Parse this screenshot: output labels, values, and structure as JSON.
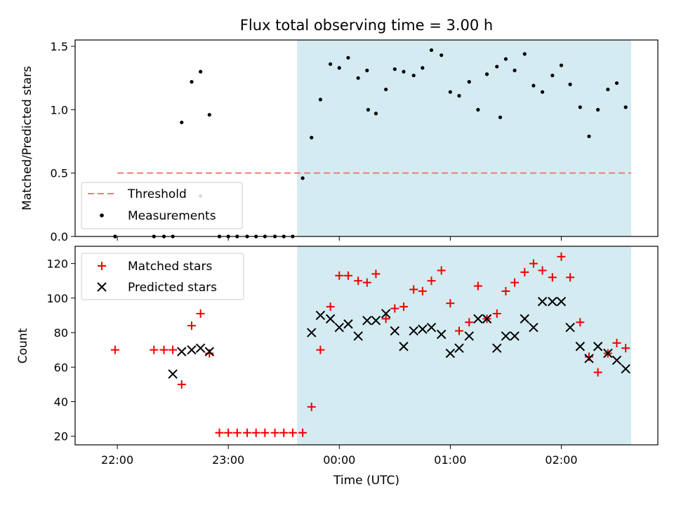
{
  "chart_data": [
    {
      "type": "scatter",
      "title": "Flux total observing time = 3.00 h",
      "xlabel": "",
      "ylabel": "Matched/Predicted stars",
      "ylim": [
        0,
        1.55
      ],
      "yticks": [
        "0.0",
        "0.5",
        "1.0",
        "1.5"
      ],
      "xlim_hours": [
        21.62,
        26.87
      ],
      "shaded_interval_hours": [
        23.62,
        26.63
      ],
      "shade_color": "#d4ebf1",
      "threshold": {
        "name": "Threshold",
        "y": 0.5,
        "x_range_hours": [
          22.0,
          26.63
        ],
        "color": "#f27a7a"
      },
      "legend": {
        "position": "lower-left",
        "entries": [
          "Threshold",
          "Measurements"
        ]
      },
      "series": [
        {
          "name": "Measurements",
          "color": "#000000",
          "x_hours": [
            21.98,
            22.33,
            22.42,
            22.5,
            22.58,
            22.67,
            22.75,
            22.83,
            22.92,
            23.0,
            23.08,
            23.17,
            23.25,
            23.33,
            23.42,
            23.5,
            23.58,
            23.67,
            23.75,
            23.83,
            23.92,
            24.0,
            24.08,
            24.17,
            24.25,
            24.33,
            24.42,
            24.5,
            24.58,
            24.67,
            24.75,
            24.83,
            24.92,
            25.0,
            25.08,
            25.17,
            25.25,
            25.33,
            25.42,
            25.5,
            25.58,
            25.67,
            25.75,
            25.83,
            25.92,
            26.0,
            26.08,
            26.17,
            26.25,
            26.33,
            26.42,
            26.5,
            26.58
          ],
          "y": [
            0.0,
            0.0,
            0.0,
            0.0,
            0.9,
            1.22,
            1.3,
            0.96,
            0.0,
            0.0,
            0.0,
            0.0,
            0.0,
            0.0,
            0.0,
            0.0,
            0.0,
            0.46,
            0.78,
            1.08,
            1.36,
            1.33,
            1.41,
            1.25,
            1.31,
            0.97,
            1.16,
            1.32,
            1.3,
            1.27,
            1.33,
            1.47,
            1.43,
            1.14,
            1.11,
            1.22,
            1.0,
            1.28,
            1.34,
            1.4,
            1.31,
            1.44,
            1.19,
            1.14,
            1.27,
            1.35,
            1.2,
            1.02,
            0.79,
            1.0,
            1.16,
            1.21,
            1.02
          ]
        }
      ],
      "extra_points": [
        {
          "x_hours": 22.75,
          "y": 0.32
        },
        {
          "x_hours": 24.26,
          "y": 1.0
        },
        {
          "x_hours": 25.45,
          "y": 0.94
        }
      ]
    },
    {
      "type": "scatter",
      "title": "",
      "xlabel": "Time (UTC)",
      "ylabel": "Count",
      "ylim": [
        15,
        130
      ],
      "yticks": [
        "20",
        "40",
        "60",
        "80",
        "100",
        "120"
      ],
      "xticks": [
        "22:00",
        "23:00",
        "00:00",
        "01:00",
        "02:00"
      ],
      "xtick_hours": [
        22,
        23,
        24,
        25,
        26
      ],
      "legend": {
        "position": "top-left",
        "entries": [
          "Matched stars",
          "Predicted stars"
        ]
      },
      "series": [
        {
          "name": "Matched stars",
          "marker": "plus",
          "color": "#ee0000",
          "x_hours": [
            21.98,
            22.33,
            22.42,
            22.5,
            22.58,
            22.67,
            22.75,
            22.83,
            22.92,
            23.0,
            23.08,
            23.17,
            23.25,
            23.33,
            23.42,
            23.5,
            23.58,
            23.67,
            23.75,
            23.83,
            23.92,
            24.0,
            24.08,
            24.17,
            24.25,
            24.33,
            24.42,
            24.5,
            24.58,
            24.67,
            24.75,
            24.83,
            24.92,
            25.0,
            25.08,
            25.17,
            25.25,
            25.33,
            25.42,
            25.5,
            25.58,
            25.67,
            25.75,
            25.83,
            25.92,
            26.0,
            26.08,
            26.17,
            26.25,
            26.33,
            26.42,
            26.5,
            26.58
          ],
          "y": [
            70,
            70,
            70,
            70,
            50,
            84,
            91,
            68,
            22,
            22,
            22,
            22,
            22,
            22,
            22,
            22,
            22,
            22,
            37,
            70,
            95,
            113,
            113,
            110,
            109,
            114,
            88,
            94,
            95,
            105,
            104,
            110,
            116,
            97,
            81,
            86,
            107,
            88,
            91,
            104,
            109,
            115,
            120,
            116,
            112,
            124,
            112,
            86,
            66,
            57,
            68,
            74,
            71
          ]
        },
        {
          "name": "Predicted stars",
          "marker": "x",
          "color": "#000000",
          "x_hours": [
            22.5,
            22.58,
            22.67,
            22.75,
            22.83,
            23.75,
            23.83,
            23.92,
            24.0,
            24.08,
            24.17,
            24.25,
            24.33,
            24.42,
            24.5,
            24.58,
            24.67,
            24.75,
            24.83,
            24.92,
            25.0,
            25.08,
            25.17,
            25.25,
            25.33,
            25.42,
            25.5,
            25.58,
            25.67,
            25.75,
            25.83,
            25.92,
            26.0,
            26.08,
            26.17,
            26.25,
            26.33,
            26.42,
            26.5,
            26.58
          ],
          "y": [
            56,
            69,
            70,
            71,
            69,
            80,
            90,
            88,
            83,
            85,
            78,
            87,
            87,
            91,
            81,
            72,
            81,
            82,
            83,
            79,
            68,
            71,
            78,
            88,
            88,
            71,
            78,
            78,
            88,
            83,
            98,
            98,
            98,
            83,
            72,
            65,
            72,
            68,
            64,
            59
          ]
        }
      ]
    }
  ]
}
